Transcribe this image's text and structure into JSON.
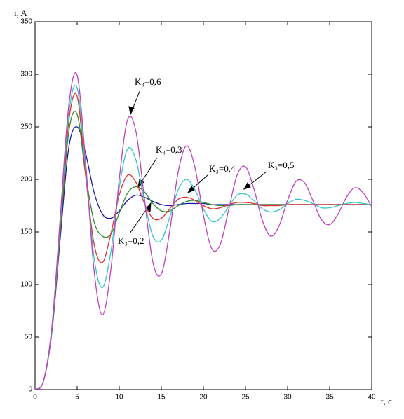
{
  "chart_data": {
    "type": "line",
    "x_label": "t, c",
    "y_label": "i, A",
    "x": [
      0,
      1,
      2,
      3,
      4,
      5,
      6,
      7,
      8,
      9,
      10,
      11,
      12,
      13,
      14,
      15,
      16,
      17,
      18,
      19,
      20,
      21,
      22,
      23,
      24,
      25,
      26,
      27,
      28,
      29,
      30,
      31,
      32,
      33,
      34,
      35,
      36,
      37,
      38,
      39,
      40
    ],
    "xlim": [
      0,
      40
    ],
    "xticks": [
      0,
      5,
      10,
      15,
      20,
      25,
      30,
      35,
      40
    ],
    "ylim": [
      0,
      350
    ],
    "yticks": [
      0,
      50,
      100,
      150,
      200,
      250,
      300,
      350
    ],
    "grid": false,
    "series": [
      {
        "name": "K₃=0,2",
        "color": "#1a1aa6",
        "values": [
          0,
          8,
          55,
          145,
          230,
          250,
          225,
          188,
          167,
          163,
          170,
          180,
          185,
          183,
          179,
          176,
          175,
          176,
          177,
          177,
          177,
          176,
          176,
          176,
          176,
          176,
          176,
          176,
          176,
          176,
          176,
          176,
          176,
          176,
          176,
          176,
          176,
          176,
          176,
          176,
          176
        ]
      },
      {
        "name": "K₃=0,3",
        "color": "#2e8b2e",
        "values": [
          0,
          8,
          57,
          150,
          245,
          262,
          205,
          160,
          146,
          148,
          168,
          187,
          193,
          188,
          177,
          170,
          170,
          175,
          179,
          180,
          178,
          176,
          175,
          175,
          176,
          176,
          176,
          176,
          176,
          176,
          176,
          176,
          176,
          176,
          176,
          176,
          176,
          176,
          176,
          176,
          176
        ]
      },
      {
        "name": "K₃=0,4",
        "color": "#e03030",
        "values": [
          0,
          8,
          57,
          155,
          255,
          279,
          204,
          139,
          121,
          148,
          185,
          204,
          197,
          177,
          163,
          163,
          172,
          181,
          183,
          180,
          175,
          172,
          173,
          176,
          178,
          178,
          177,
          175,
          175,
          175,
          176,
          176,
          176,
          176,
          176,
          176,
          176,
          176,
          176,
          176,
          176
        ]
      },
      {
        "name": "K₃=0,5",
        "color": "#33c6c6",
        "values": [
          0,
          8,
          58,
          160,
          262,
          287,
          211,
          126,
          97,
          131,
          192,
          229,
          218,
          179,
          146,
          142,
          164,
          190,
          200,
          190,
          172,
          160,
          163,
          174,
          185,
          186,
          180,
          172,
          169,
          171,
          177,
          181,
          180,
          177,
          173,
          173,
          175,
          177,
          178,
          177,
          176
        ]
      },
      {
        "name": "K₃=0,6",
        "color": "#c040c0",
        "values": [
          0,
          8,
          60,
          165,
          270,
          299,
          217,
          114,
          71,
          114,
          200,
          257,
          245,
          181,
          121,
          110,
          151,
          207,
          232,
          211,
          166,
          134,
          138,
          171,
          204,
          212,
          191,
          161,
          146,
          156,
          180,
          198,
          197,
          180,
          162,
          157,
          167,
          183,
          192,
          187,
          174
        ]
      }
    ]
  }
}
